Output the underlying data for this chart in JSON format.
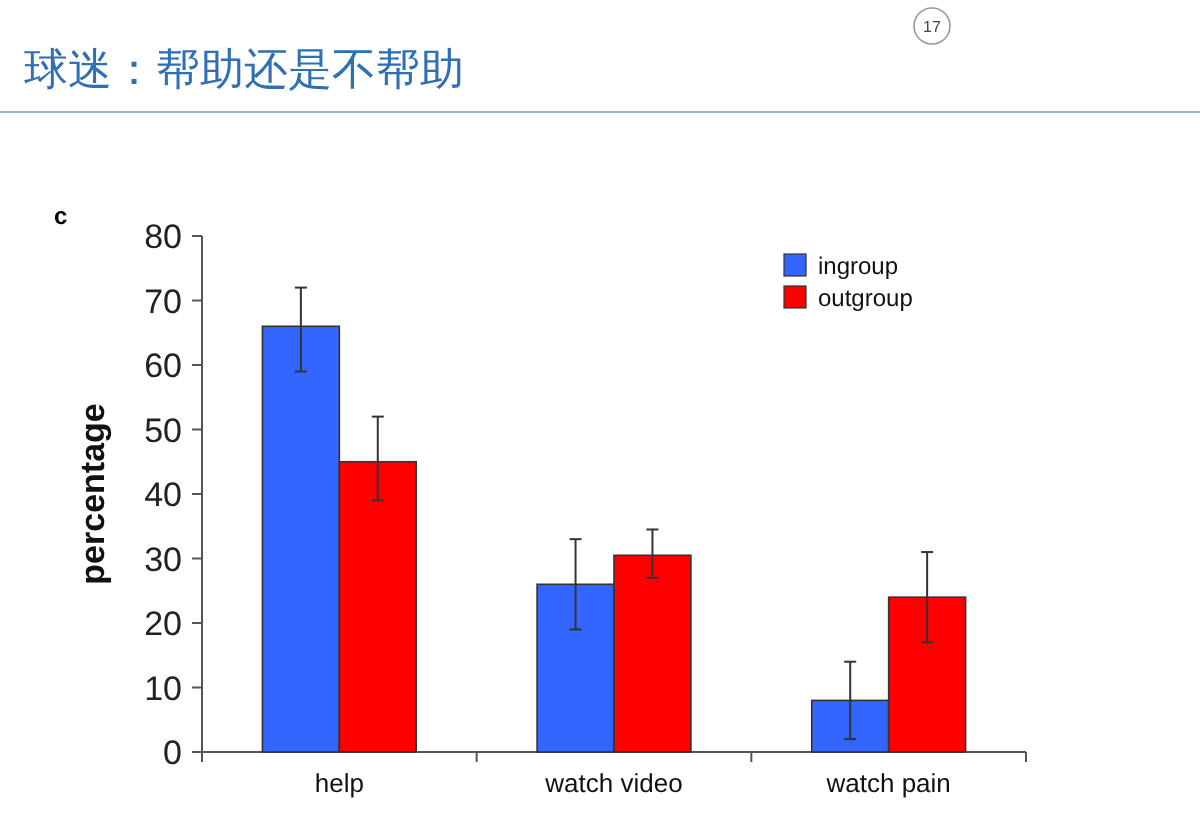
{
  "chart_data": {
    "type": "bar",
    "title": "球迷：帮助还是不帮助",
    "ylabel": "percentage",
    "annotations": [
      "17",
      "c"
    ],
    "categories": [
      "help",
      "watch video",
      "watch pain"
    ],
    "series": [
      {
        "name": "ingroup",
        "color": "#3366ff",
        "values": [
          66,
          26,
          8
        ],
        "errors": [
          [
            59,
            72
          ],
          [
            19,
            33
          ],
          [
            2,
            14
          ]
        ]
      },
      {
        "name": "outgroup",
        "color": "#ff0000",
        "values": [
          45,
          30.5,
          24
        ],
        "errors": [
          [
            39,
            52
          ],
          [
            27,
            34.5
          ],
          [
            17,
            31
          ]
        ]
      }
    ],
    "ylim": [
      0,
      80
    ],
    "yticks": [
      0,
      10,
      20,
      30,
      40,
      50,
      60,
      70,
      80
    ],
    "legend": "top right"
  }
}
